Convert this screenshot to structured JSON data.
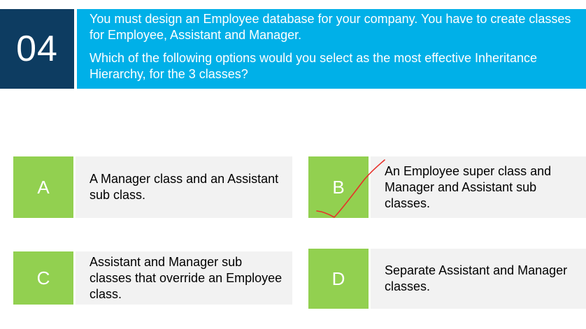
{
  "question": {
    "number": "04",
    "line1": "You must design an Employee database for your company. You have to create classes for Employee, Assistant and Manager.",
    "line2": "Which of the following options would you select as the most effective Inheritance Hierarchy, for the 3 classes?"
  },
  "options": [
    {
      "letter": "A",
      "text": "A Manager class and an Assistant sub class."
    },
    {
      "letter": "B",
      "text": "An Employee super class and Manager and Assistant sub classes."
    },
    {
      "letter": "C",
      "text": "Assistant and Manager sub classes that override an Employee class."
    },
    {
      "letter": "D",
      "text": "Separate Assistant and Manager classes."
    }
  ],
  "annotation": {
    "mark": "checkmark-icon",
    "marked_option": "B",
    "color": "#e8302a"
  },
  "colors": {
    "number_bg": "#0d3c61",
    "question_bg": "#00b0e8",
    "letter_bg": "#92d050",
    "option_bg": "#f2f2f2"
  }
}
